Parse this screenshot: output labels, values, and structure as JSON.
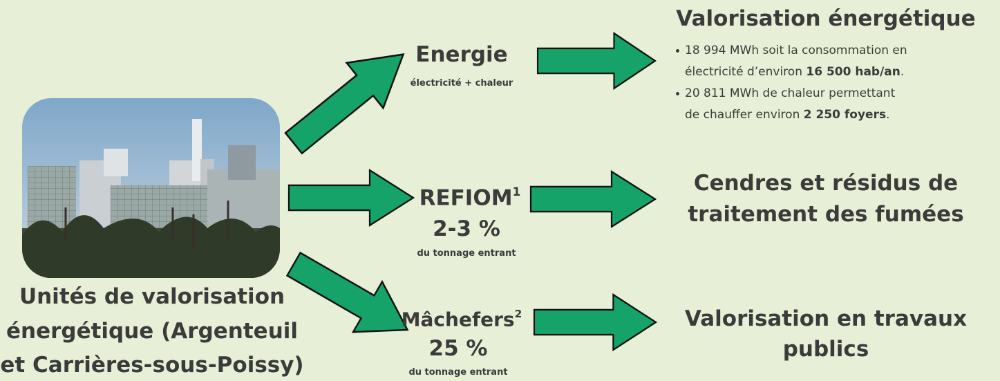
{
  "source": {
    "lines": [
      "Unités de valorisation",
      "énergétique (Argenteuil",
      "et Carrières-sous-Poissy)"
    ]
  },
  "flows": [
    {
      "label": "Energie",
      "detail": "électricité + chaleur"
    },
    {
      "label": "REFIOM",
      "note": "1",
      "share": "2-3 %",
      "detail": "du tonnage entrant"
    },
    {
      "label": "Mâchefers",
      "note": "2",
      "share": "25 %",
      "detail": "du tonnage entrant"
    }
  ],
  "outcomes": [
    {
      "title_lines": [
        "Valorisation énergétique"
      ],
      "bullets": [
        {
          "line1": "18 994 MWh soit la consommation en",
          "line2": "électricité d’environ ",
          "bold": "16 500 hab/an",
          "end": "."
        },
        {
          "line1": "20 811 MWh de chaleur permettant",
          "line2": "de chauffer environ ",
          "bold": "2 250 foyers",
          "end": "."
        }
      ]
    },
    {
      "title_lines": [
        "Cendres et résidus de",
        "traitement des fumées"
      ]
    },
    {
      "title_lines": [
        "Valorisation en travaux",
        "publics"
      ]
    }
  ]
}
